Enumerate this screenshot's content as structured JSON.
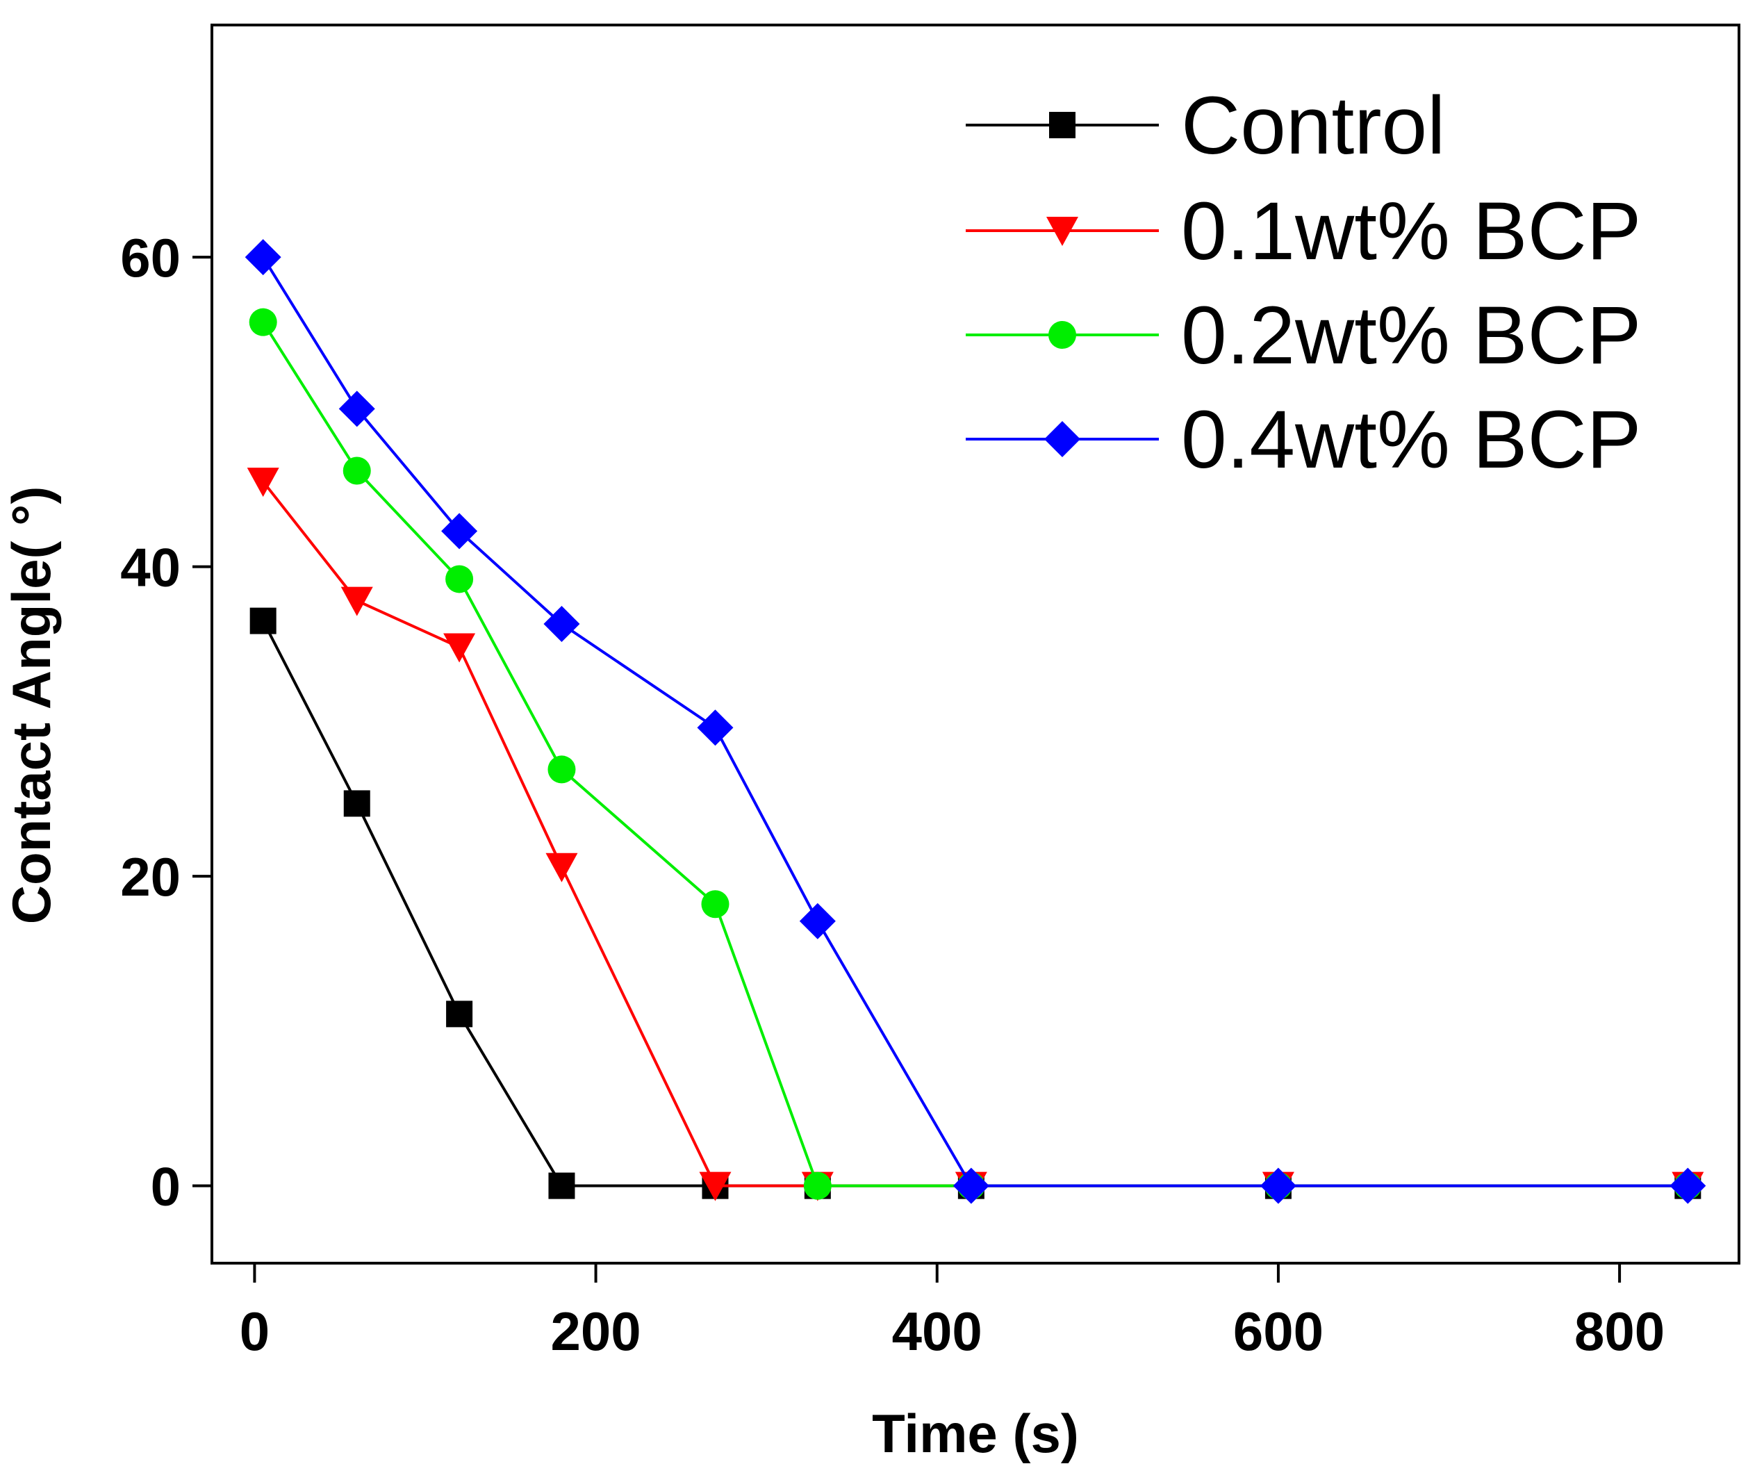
{
  "chart_data": {
    "type": "line",
    "title": "",
    "xlabel": "Time (s)",
    "ylabel": "Contact Angle( °)",
    "xlim": [
      -25,
      870
    ],
    "ylim": [
      -5,
      75
    ],
    "xticks": [
      0,
      200,
      400,
      600,
      800
    ],
    "yticks": [
      0,
      20,
      40,
      60
    ],
    "xtick_labels": [
      "0",
      "200",
      "400",
      "600",
      "800"
    ],
    "ytick_labels": [
      "0",
      "20",
      "40",
      "60"
    ],
    "grid": false,
    "legend_position": "top-right",
    "series": [
      {
        "name": "Control",
        "color": "#000000",
        "marker": "square",
        "x": [
          5,
          60,
          120,
          180,
          270,
          330,
          420,
          600,
          840
        ],
        "y": [
          36.5,
          24.7,
          11.1,
          0,
          0,
          0,
          0,
          0,
          0
        ]
      },
      {
        "name": "0.1wt% BCP",
        "color": "#ff0000",
        "marker": "triangle-down",
        "x": [
          5,
          60,
          120,
          180,
          270,
          330,
          420,
          600,
          840
        ],
        "y": [
          45.5,
          37.8,
          34.8,
          20.6,
          0,
          0,
          0,
          0,
          0
        ]
      },
      {
        "name": "0.2wt% BCP",
        "color": "#00ee00",
        "marker": "circle",
        "x": [
          5,
          60,
          120,
          180,
          270,
          330,
          420,
          600,
          840
        ],
        "y": [
          55.8,
          46.2,
          39.2,
          26.9,
          18.2,
          0,
          0,
          0,
          0
        ]
      },
      {
        "name": "0.4wt% BCP",
        "color": "#0000ff",
        "marker": "diamond",
        "x": [
          5,
          60,
          120,
          180,
          270,
          330,
          420,
          600,
          840
        ],
        "y": [
          60,
          50.2,
          42.3,
          36.3,
          29.6,
          17.1,
          0,
          0,
          0
        ]
      }
    ]
  }
}
